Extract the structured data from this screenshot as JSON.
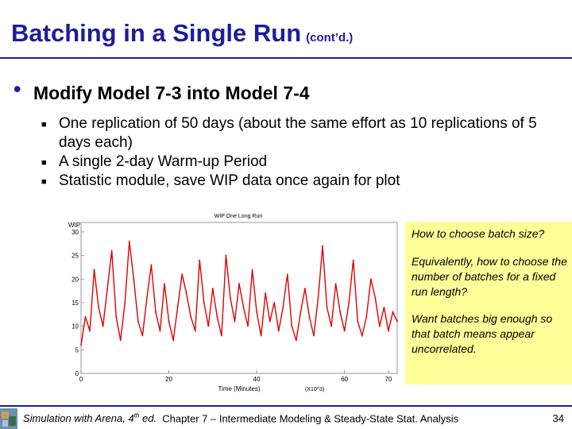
{
  "slide": {
    "title": "Batching in a Single Run",
    "title_suffix": "(cont’d.)",
    "bullet": "Modify Model 7-3 into Model 7-4",
    "sub_bullets": [
      "One replication of 50 days (about the same effort as 10 replications of 5 days each)",
      "A single 2-day Warm-up Period",
      "Statistic module, save WIP data once again for plot"
    ],
    "note": {
      "q1": "How to choose batch size?",
      "q2": "Equivalently, how to choose the number of batches for a fixed run length?",
      "q3": "Want batches big enough so that batch means appear uncorrelated."
    },
    "footer": {
      "book": "Simulation with Arena, 4",
      "edition_sup": "th",
      "edition_rest": " ed.",
      "chapter": "Chapter 7 – Intermediate Modeling & Steady-State Stat. Analysis",
      "page": "34"
    },
    "colors": {
      "title": "#1c1c9c",
      "note_bg": "#ffff99",
      "series": "#e00000"
    }
  },
  "chart_data": {
    "type": "line",
    "title": "WIP One Long Run",
    "ylabel": "WIP",
    "xlabel": "Time (Minutes)",
    "x_multiplier": "(X10^3)",
    "xlim": [
      0,
      72
    ],
    "ylim": [
      0,
      32
    ],
    "x_ticks": [
      "0",
      "20",
      "40",
      "60",
      "70"
    ],
    "y_ticks": [
      "0",
      "5",
      "10",
      "15",
      "20",
      "25",
      "30"
    ],
    "series": [
      {
        "color": "#e00000",
        "x": [
          0,
          1,
          2,
          3,
          4,
          5,
          6,
          7,
          8,
          9,
          10,
          11,
          12,
          13,
          14,
          15,
          16,
          17,
          18,
          19,
          20,
          21,
          22,
          23,
          24,
          25,
          26,
          27,
          28,
          29,
          30,
          31,
          32,
          33,
          34,
          35,
          36,
          37,
          38,
          39,
          40,
          41,
          42,
          43,
          44,
          45,
          46,
          47,
          48,
          49,
          50,
          51,
          52,
          53,
          54,
          55,
          56,
          57,
          58,
          59,
          60,
          61,
          62,
          63,
          64,
          65,
          66,
          67,
          68,
          69,
          70,
          71,
          72
        ],
        "y": [
          6,
          12,
          9,
          22,
          14,
          10,
          18,
          26,
          12,
          7,
          15,
          28,
          20,
          11,
          8,
          16,
          23,
          13,
          9,
          19,
          11,
          7,
          14,
          21,
          17,
          12,
          9,
          24,
          15,
          10,
          18,
          12,
          8,
          25,
          16,
          11,
          19,
          14,
          10,
          22,
          13,
          8,
          17,
          11,
          15,
          9,
          14,
          21,
          10,
          7,
          13,
          18,
          12,
          8,
          16,
          27,
          14,
          10,
          19,
          13,
          9,
          15,
          24,
          11,
          8,
          12,
          20,
          16,
          10,
          14,
          9,
          13,
          11
        ]
      }
    ]
  }
}
